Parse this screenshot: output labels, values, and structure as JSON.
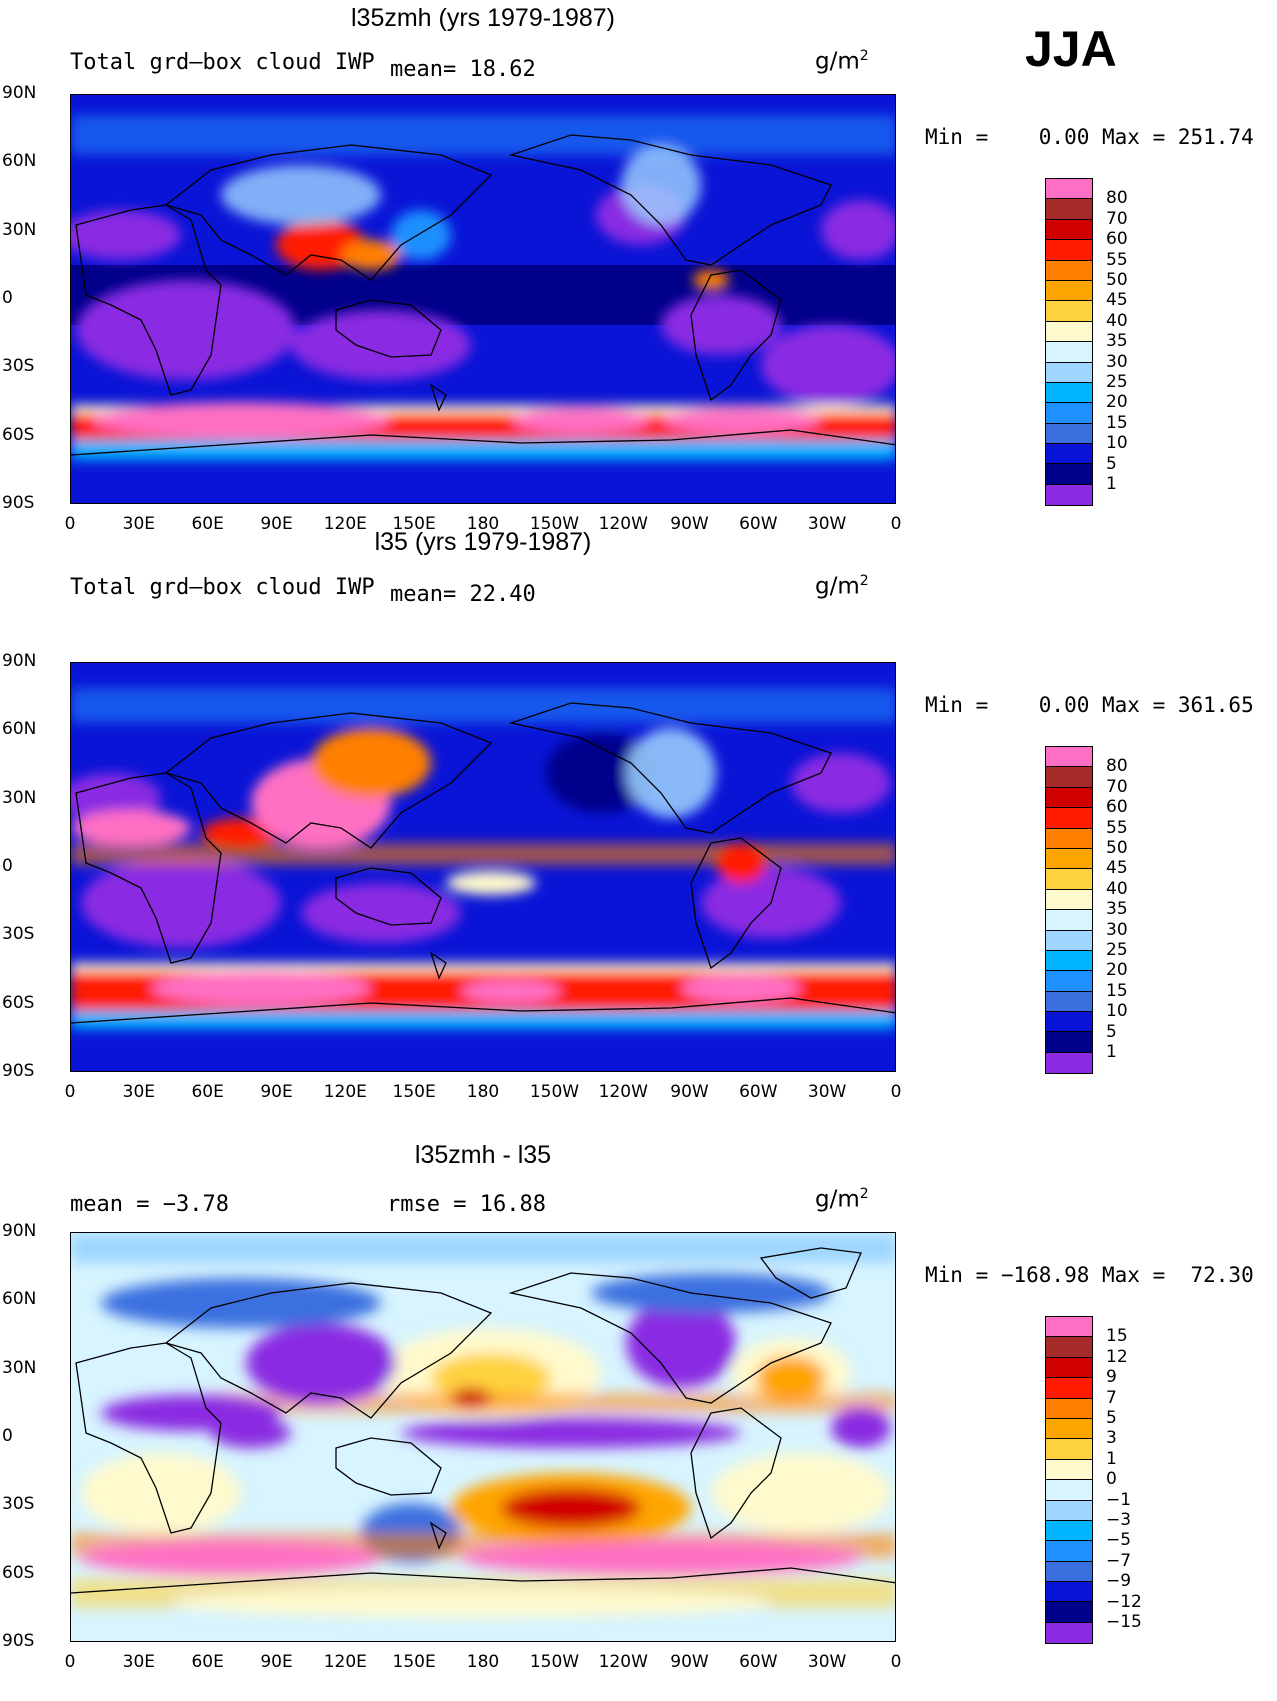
{
  "season": "JJA",
  "panels": [
    {
      "title": "l35zmh (yrs 1979-1987)",
      "left_text": "Total grd–box cloud IWP",
      "mean_text": "mean=  18.62",
      "unit": "g/m",
      "minmax": "Min =    0.00 Max = 251.74",
      "legend": [
        "80",
        "70",
        "60",
        "55",
        "50",
        "45",
        "40",
        "35",
        "30",
        "25",
        "20",
        "15",
        "10",
        "5",
        "1"
      ],
      "colors": [
        "#ff6fc3",
        "#a52a2a",
        "#d10000",
        "#ff1a00",
        "#ff7f00",
        "#ffa500",
        "#ffd23f",
        "#fffacd",
        "#d7f4ff",
        "#9fd6ff",
        "#00b4ff",
        "#1e90ff",
        "#3a6fe0",
        "#0a14d6",
        "#00008b",
        "#8a2be2"
      ]
    },
    {
      "title": "l35 (yrs 1979-1987)",
      "left_text": "Total grd–box cloud IWP",
      "mean_text": "mean=  22.40",
      "unit": "g/m",
      "minmax": "Min =    0.00 Max = 361.65",
      "legend": [
        "80",
        "70",
        "60",
        "55",
        "50",
        "45",
        "40",
        "35",
        "30",
        "25",
        "20",
        "15",
        "10",
        "5",
        "1"
      ],
      "colors": [
        "#ff6fc3",
        "#a52a2a",
        "#d10000",
        "#ff1a00",
        "#ff7f00",
        "#ffa500",
        "#ffd23f",
        "#fffacd",
        "#d7f4ff",
        "#9fd6ff",
        "#00b4ff",
        "#1e90ff",
        "#3a6fe0",
        "#0a14d6",
        "#00008b",
        "#8a2be2"
      ]
    },
    {
      "title": "l35zmh - l35",
      "left_text": "mean =  −3.78",
      "mean_text": "rmse =  16.88",
      "unit": "g/m",
      "minmax": "Min = −168.98 Max =  72.30",
      "legend": [
        "15",
        "12",
        "9",
        "7",
        "5",
        "3",
        "1",
        "0",
        "−1",
        "−3",
        "−5",
        "−7",
        "−9",
        "−12",
        "−15"
      ],
      "colors": [
        "#ff6fc3",
        "#a52a2a",
        "#d10000",
        "#ff1a00",
        "#ff7f00",
        "#ffa500",
        "#ffd23f",
        "#fffacd",
        "#d7f4ff",
        "#9fd6ff",
        "#00b4ff",
        "#1e90ff",
        "#3a6fe0",
        "#0a14d6",
        "#00008b",
        "#8a2be2"
      ]
    }
  ],
  "lat_labels": [
    "90N",
    "60N",
    "30N",
    "0",
    "30S",
    "60S",
    "90S"
  ],
  "lon_labels": [
    "0",
    "30E",
    "60E",
    "90E",
    "120E",
    "150E",
    "180",
    "150W",
    "120W",
    "90W",
    "60W",
    "30W",
    "0"
  ]
}
